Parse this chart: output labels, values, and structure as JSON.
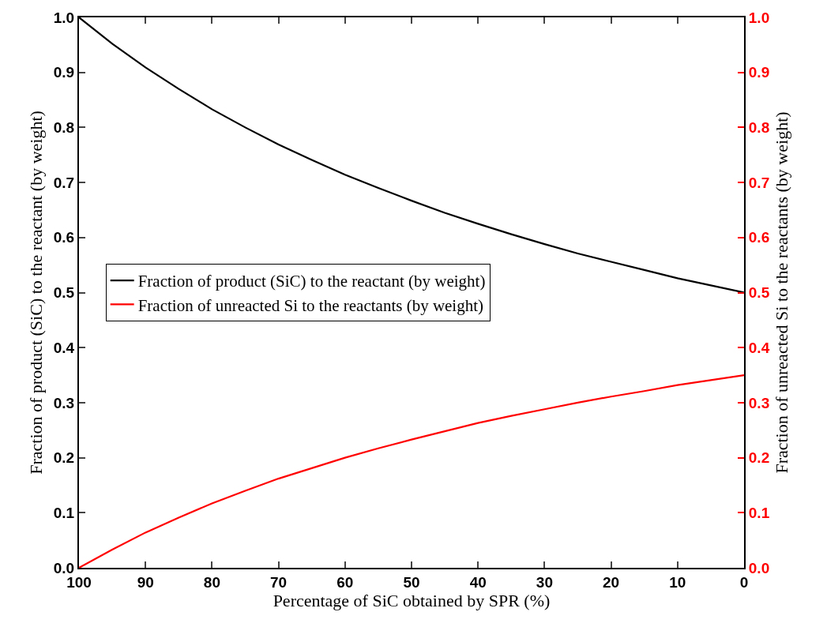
{
  "chart_data": {
    "type": "line",
    "xlabel": "Percentage of SiC obtained by SPR (%)",
    "ylabel": "Fraction of product (SiC) to the reactant (by weight)",
    "y2label": "Fraction of unreacted Si to the reactants (by weight)",
    "x": [
      100,
      95,
      90,
      85,
      80,
      75,
      70,
      65,
      60,
      55,
      50,
      45,
      40,
      35,
      30,
      25,
      20,
      15,
      10,
      5,
      0
    ],
    "series": [
      {
        "name": "Fraction of product (SiC) to the reactant (by weight)",
        "color": "#000000",
        "values": [
          1.0,
          0.952,
          0.909,
          0.87,
          0.833,
          0.8,
          0.769,
          0.741,
          0.714,
          0.69,
          0.667,
          0.645,
          0.625,
          0.606,
          0.588,
          0.571,
          0.556,
          0.541,
          0.526,
          0.513,
          0.5
        ]
      },
      {
        "name": "Fraction of unreacted Si to the reactants (by weight)",
        "color": "#ff0000",
        "axis": "y2",
        "values": [
          0,
          0.033,
          0.064,
          0.091,
          0.117,
          0.14,
          0.162,
          0.181,
          0.2,
          0.217,
          0.233,
          0.248,
          0.263,
          0.276,
          0.288,
          0.3,
          0.311,
          0.321,
          0.332,
          0.341,
          0.35
        ]
      }
    ],
    "xlim": [
      100,
      0
    ],
    "xticks": [
      100,
      90,
      80,
      70,
      60,
      50,
      40,
      30,
      20,
      10,
      0
    ],
    "ylim": [
      0,
      1
    ],
    "yticks": [
      {
        "value": 0,
        "label": "0.0"
      },
      0.1,
      0.2,
      0.3,
      0.4,
      0.5,
      0.6,
      0.7,
      0.8,
      0.9,
      {
        "value": 1,
        "label": "1.0"
      }
    ],
    "y2lim": [
      0,
      1
    ],
    "y2ticks": [
      {
        "value": 0,
        "label": "0.0"
      },
      0.1,
      0.2,
      0.3,
      0.4,
      0.5,
      0.6,
      0.7,
      0.8,
      0.9,
      {
        "value": 1,
        "label": "1.0"
      }
    ],
    "grid": false,
    "legend": "left",
    "marker": "none",
    "line_style": "solid"
  }
}
